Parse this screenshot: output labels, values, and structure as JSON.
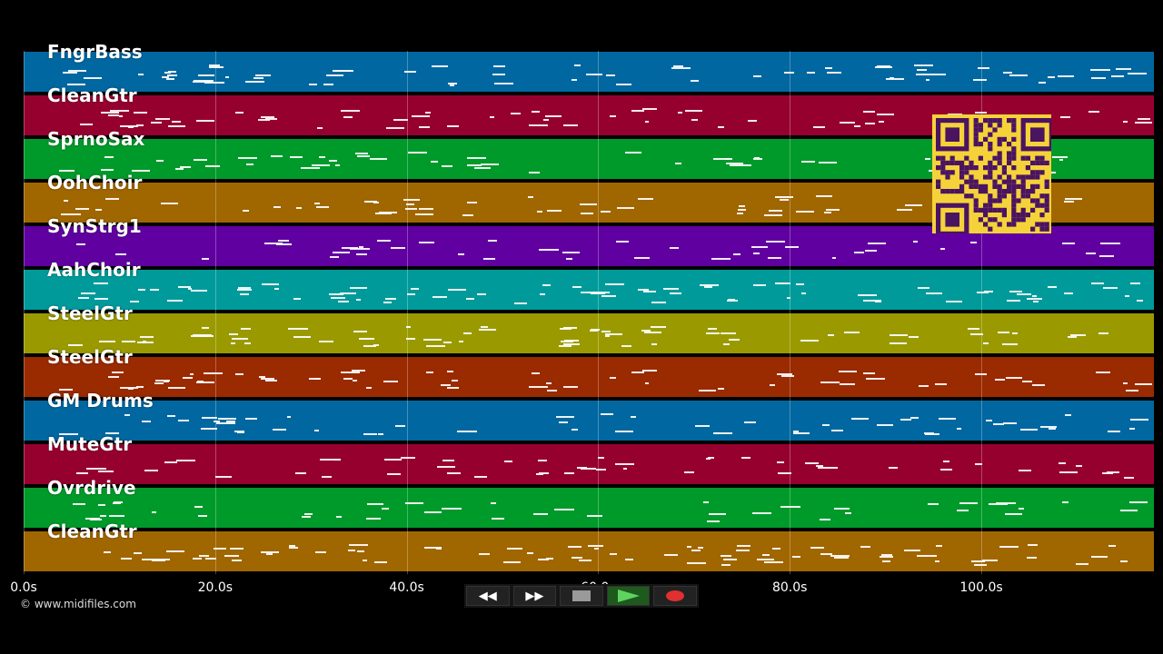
{
  "tracks": [
    {
      "name": "FngrBass",
      "color": "#0067a0"
    },
    {
      "name": "CleanGtr",
      "color": "#96002f"
    },
    {
      "name": "SprnoSax",
      "color": "#009a2a"
    },
    {
      "name": "OohChoir",
      "color": "#a06600"
    },
    {
      "name": "SynStrg1",
      "color": "#6000a0"
    },
    {
      "name": "AahChoir",
      "color": "#009a9a"
    },
    {
      "name": "SteelGtr",
      "color": "#9a9a00"
    },
    {
      "name": "SteelGtr",
      "color": "#9a2a00"
    },
    {
      "name": "GM Drums",
      "color": "#0067a0"
    },
    {
      "name": "MuteGtr",
      "color": "#96002f"
    },
    {
      "name": "Ovrdrive",
      "color": "#009a2a"
    },
    {
      "name": "CleanGtr",
      "color": "#a06600"
    }
  ],
  "timeline": {
    "ticks": [
      "0.0s",
      "20.0s",
      "40.0s",
      "60.0s",
      "80.0s",
      "100.0s"
    ],
    "tick_seconds": [
      0,
      20,
      40,
      60,
      80,
      100
    ],
    "max_seconds": 118
  },
  "copyright": "© www.midifiles.com",
  "controls": {
    "rewind": "◀◀",
    "forward": "▶▶",
    "stop_icon": "stop-icon",
    "play_icon": "play-icon",
    "record_icon": "record-icon"
  }
}
